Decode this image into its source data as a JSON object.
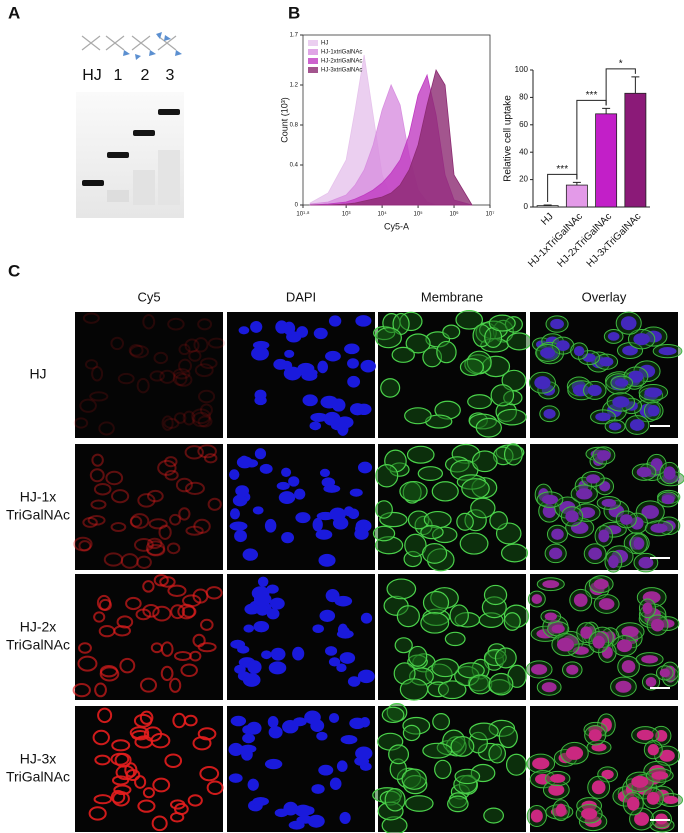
{
  "panels": {
    "A": "A",
    "B": "B",
    "C": "C"
  },
  "gel": {
    "lanes": [
      "HJ",
      "1",
      "2",
      "3"
    ]
  },
  "chart_data": [
    {
      "type": "area",
      "x_label": "Cy5-A",
      "y_label": "Count (10³)",
      "log_x": true,
      "x": [
        100,
        316,
        1000,
        1778,
        3162,
        5623,
        10000,
        17783,
        31623,
        56234,
        100000,
        177828,
        316228,
        562341,
        1000000,
        3162278
      ],
      "xlim": [
        63.1,
        10000000
      ],
      "xticks": [
        {
          "value": 63.1,
          "label": "10¹·⁸"
        },
        {
          "value": 1000,
          "label": "10³"
        },
        {
          "value": 10000,
          "label": "10⁴"
        },
        {
          "value": 100000,
          "label": "10⁵"
        },
        {
          "value": 1000000,
          "label": "10⁶"
        },
        {
          "value": 10000000,
          "label": "10⁷"
        }
      ],
      "ylim": [
        0,
        1.7
      ],
      "yticks": [
        0,
        0.4,
        0.8,
        1.2,
        1.7
      ],
      "legend": "top-left",
      "series": [
        {
          "name": "HJ",
          "color": "#e6c3ec",
          "values": [
            0.02,
            0.12,
            0.45,
            0.95,
            1.5,
            0.9,
            0.3,
            0.08,
            0.02,
            0,
            0,
            0,
            0,
            0,
            0,
            0
          ]
        },
        {
          "name": "HJ-1xtriGalNAc",
          "color": "#d88fe0",
          "values": [
            0.01,
            0.03,
            0.1,
            0.2,
            0.35,
            0.6,
            0.95,
            1.2,
            1.0,
            0.5,
            0.15,
            0.03,
            0,
            0,
            0,
            0
          ]
        },
        {
          "name": "HJ-2xtriGalNAc",
          "color": "#c03cc2",
          "values": [
            0,
            0.01,
            0.03,
            0.06,
            0.1,
            0.15,
            0.22,
            0.32,
            0.45,
            0.7,
            1.1,
            1.3,
            0.9,
            0.3,
            0.05,
            0
          ]
        },
        {
          "name": "HJ-3xtriGalNAc",
          "color": "#8c2b72",
          "values": [
            0,
            0,
            0.01,
            0.02,
            0.04,
            0.06,
            0.08,
            0.12,
            0.2,
            0.35,
            0.6,
            1.0,
            1.35,
            1.2,
            0.3,
            0
          ]
        }
      ]
    },
    {
      "type": "bar",
      "y_label": "Relative cell uptake",
      "categories": [
        "HJ",
        "HJ-1xTriGalNAc",
        "HJ-2xTriGalNAc",
        "HJ-3xTriGalNAc"
      ],
      "values": [
        1,
        16,
        68,
        83
      ],
      "errors": [
        0.5,
        2,
        4,
        12
      ],
      "colors": [
        "#ffffff",
        "#e39ae8",
        "#c21fc8",
        "#8b1a78"
      ],
      "ylim": [
        0,
        100
      ],
      "yticks": [
        0,
        20,
        40,
        60,
        80,
        100
      ],
      "annotations": [
        "***",
        "***",
        "*"
      ]
    }
  ],
  "microscopy": {
    "columns": [
      "Cy5",
      "DAPI",
      "Membrane",
      "Overlay"
    ],
    "rows": [
      [
        "HJ"
      ],
      [
        "HJ-1x",
        "TriGalNAc"
      ],
      [
        "HJ-2x",
        "TriGalNAc"
      ],
      [
        "HJ-3x",
        "TriGalNAc"
      ]
    ]
  }
}
